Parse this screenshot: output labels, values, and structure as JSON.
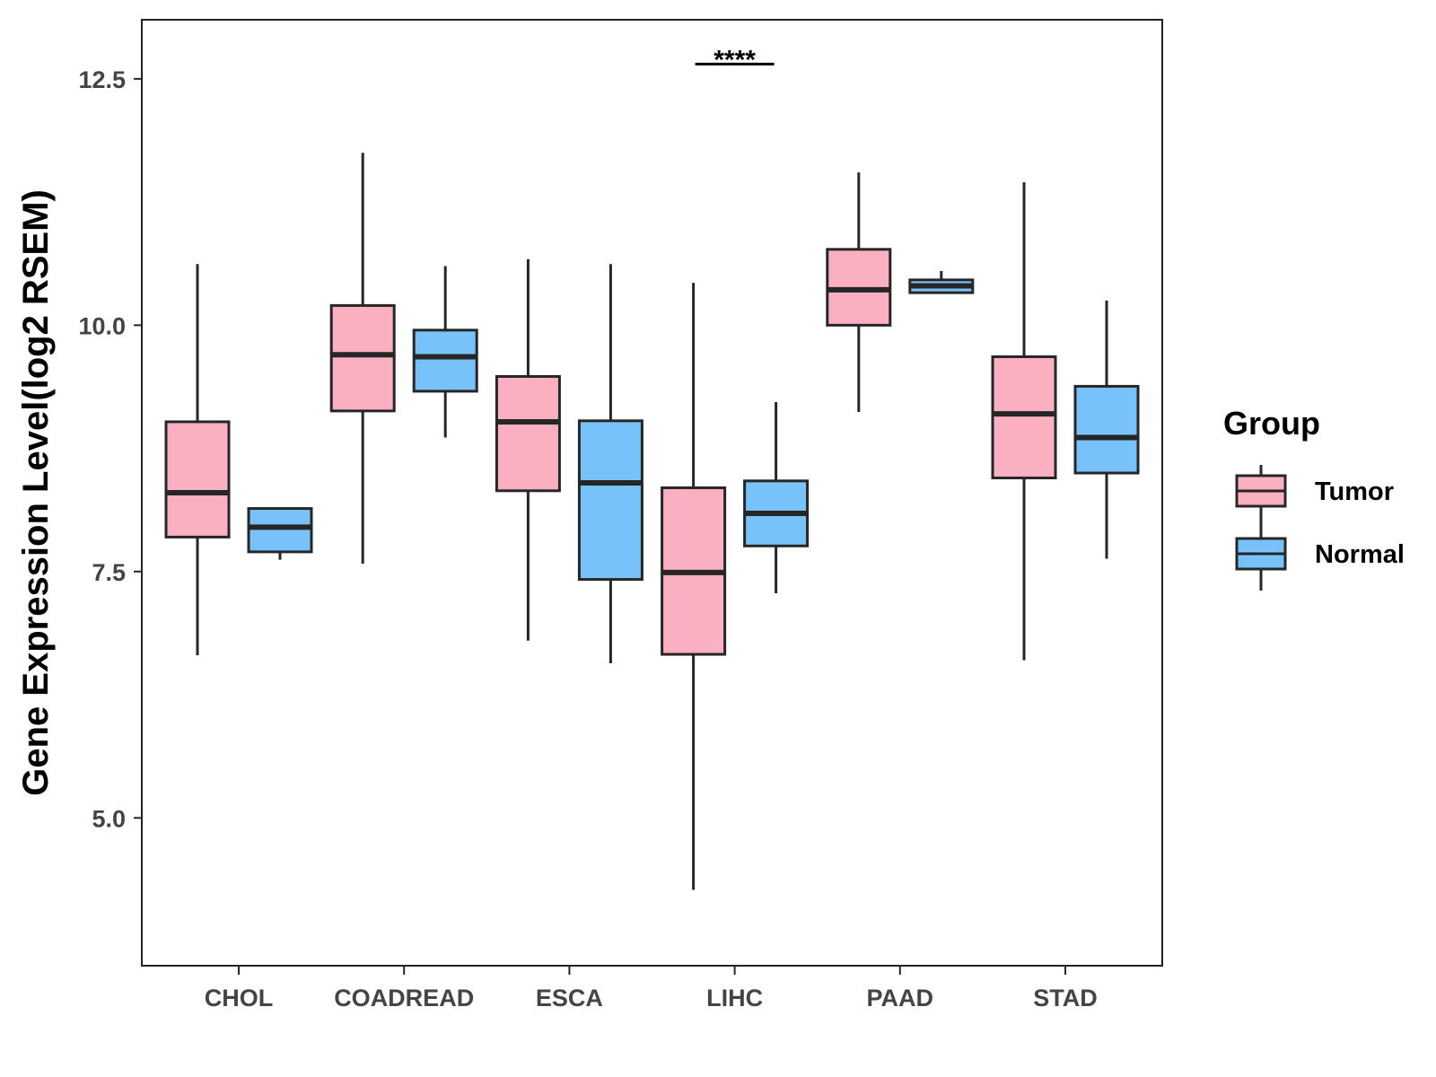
{
  "chart_data": {
    "type": "box",
    "title": "",
    "xlabel": "",
    "ylabel": "Gene Expression Level(log2 RSEM)",
    "ylim": [
      3.5,
      13.1
    ],
    "yticks": [
      5.0,
      7.5,
      10.0,
      12.5
    ],
    "ytick_labels": [
      "5.0",
      "7.5",
      "10.0",
      "12.5"
    ],
    "grid": false,
    "categories": [
      "CHOL",
      "COADREAD",
      "ESCA",
      "LIHC",
      "PAAD",
      "STAD"
    ],
    "legend": {
      "title": "Group",
      "position": "right",
      "entries": [
        {
          "name": "Tumor",
          "color": "#fbb0c1"
        },
        {
          "name": "Normal",
          "color": "#78c2fa"
        }
      ]
    },
    "series": [
      {
        "name": "Tumor",
        "color": "#fbb0c1",
        "boxes": [
          {
            "whisker_low": 6.65,
            "q1": 7.85,
            "median": 8.3,
            "q3": 9.02,
            "whisker_high": 10.62
          },
          {
            "whisker_low": 7.58,
            "q1": 9.13,
            "median": 9.7,
            "q3": 10.2,
            "whisker_high": 11.75
          },
          {
            "whisker_low": 6.8,
            "q1": 8.32,
            "median": 9.02,
            "q3": 9.48,
            "whisker_high": 10.67
          },
          {
            "whisker_low": 4.27,
            "q1": 6.66,
            "median": 7.49,
            "q3": 8.35,
            "whisker_high": 10.43
          },
          {
            "whisker_low": 9.12,
            "q1": 10.0,
            "median": 10.36,
            "q3": 10.77,
            "whisker_high": 11.55
          },
          {
            "whisker_low": 6.6,
            "q1": 8.45,
            "median": 9.1,
            "q3": 9.68,
            "whisker_high": 11.45
          }
        ]
      },
      {
        "name": "Normal",
        "color": "#78c2fa",
        "boxes": [
          {
            "whisker_low": 7.62,
            "q1": 7.7,
            "median": 7.95,
            "q3": 8.14,
            "whisker_high": 8.14
          },
          {
            "whisker_low": 8.86,
            "q1": 9.33,
            "median": 9.68,
            "q3": 9.95,
            "whisker_high": 10.6
          },
          {
            "whisker_low": 6.57,
            "q1": 7.42,
            "median": 8.4,
            "q3": 9.03,
            "whisker_high": 10.62
          },
          {
            "whisker_low": 7.28,
            "q1": 7.76,
            "median": 8.09,
            "q3": 8.42,
            "whisker_high": 9.22
          },
          {
            "whisker_low": 10.33,
            "q1": 10.33,
            "median": 10.4,
            "q3": 10.46,
            "whisker_high": 10.55
          },
          {
            "whisker_low": 7.63,
            "q1": 8.5,
            "median": 8.86,
            "q3": 9.38,
            "whisker_high": 10.25
          }
        ]
      }
    ],
    "annotations": [
      {
        "text": "****",
        "category": "LIHC",
        "y": 12.65
      }
    ]
  }
}
